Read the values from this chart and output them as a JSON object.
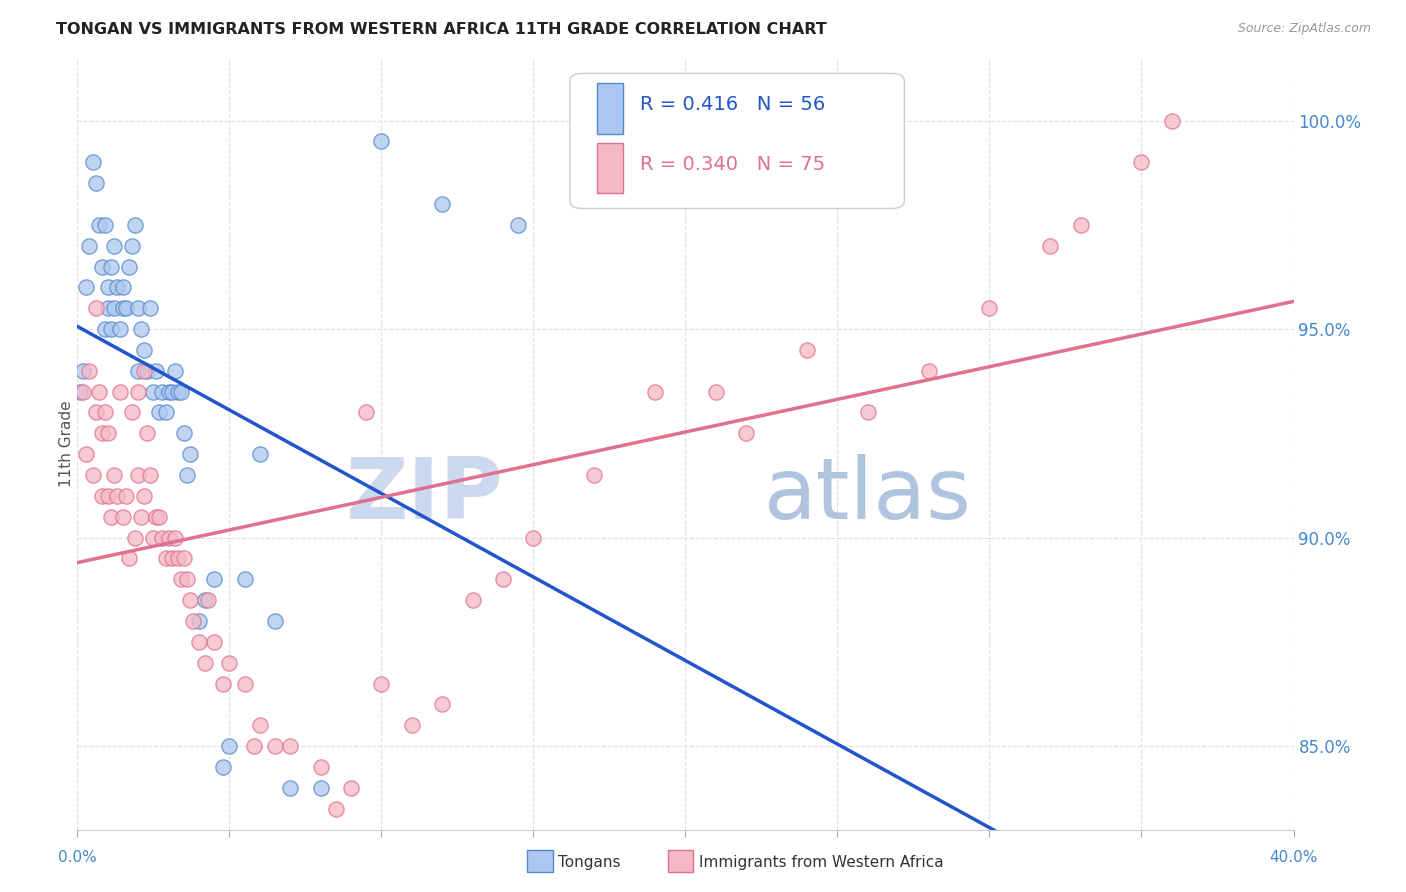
{
  "title": "TONGAN VS IMMIGRANTS FROM WESTERN AFRICA 11TH GRADE CORRELATION CHART",
  "source": "Source: ZipAtlas.com",
  "ylabel": "11th Grade",
  "xlim": [
    0.0,
    40.0
  ],
  "ylim": [
    83.0,
    101.5
  ],
  "yticks": [
    85.0,
    90.0,
    95.0,
    100.0
  ],
  "ytick_labels": [
    "85.0%",
    "90.0%",
    "95.0%",
    "100.0%"
  ],
  "xticks": [
    0.0,
    5.0,
    10.0,
    15.0,
    20.0,
    25.0,
    30.0,
    35.0,
    40.0
  ],
  "legend_r_blue": "R = 0.416",
  "legend_n_blue": "N = 56",
  "legend_r_pink": "R = 0.340",
  "legend_n_pink": "N = 75",
  "blue_scatter_color": "#adc8f0",
  "blue_edge_color": "#5588cc",
  "pink_scatter_color": "#f5b8c8",
  "pink_edge_color": "#e07090",
  "blue_line_color": "#2255cc",
  "pink_line_color": "#e07090",
  "watermark_zip_color": "#ccd8ee",
  "watermark_atlas_color": "#b0c4e0",
  "background_color": "#ffffff",
  "grid_color": "#e0e0e0",
  "tongans_x": [
    0.1,
    0.2,
    0.3,
    0.4,
    0.5,
    0.6,
    0.7,
    0.8,
    0.9,
    0.9,
    1.0,
    1.0,
    1.1,
    1.1,
    1.2,
    1.2,
    1.3,
    1.4,
    1.5,
    1.5,
    1.6,
    1.7,
    1.8,
    1.9,
    2.0,
    2.0,
    2.1,
    2.2,
    2.3,
    2.4,
    2.5,
    2.6,
    2.7,
    2.8,
    2.9,
    3.0,
    3.1,
    3.2,
    3.3,
    3.4,
    3.5,
    3.6,
    3.7,
    4.0,
    4.2,
    4.5,
    4.8,
    5.0,
    5.5,
    6.0,
    6.5,
    7.0,
    8.0,
    10.0,
    12.0,
    14.5
  ],
  "tongans_y": [
    93.5,
    94.0,
    96.0,
    97.0,
    99.0,
    98.5,
    97.5,
    96.5,
    95.0,
    97.5,
    95.5,
    96.0,
    95.0,
    96.5,
    95.5,
    97.0,
    96.0,
    95.0,
    96.0,
    95.5,
    95.5,
    96.5,
    97.0,
    97.5,
    94.0,
    95.5,
    95.0,
    94.5,
    94.0,
    95.5,
    93.5,
    94.0,
    93.0,
    93.5,
    93.0,
    93.5,
    93.5,
    94.0,
    93.5,
    93.5,
    92.5,
    91.5,
    92.0,
    88.0,
    88.5,
    89.0,
    84.5,
    85.0,
    89.0,
    92.0,
    88.0,
    84.0,
    84.0,
    99.5,
    98.0,
    97.5
  ],
  "western_africa_x": [
    0.2,
    0.3,
    0.4,
    0.5,
    0.6,
    0.7,
    0.8,
    0.8,
    0.9,
    1.0,
    1.0,
    1.1,
    1.2,
    1.3,
    1.4,
    1.5,
    1.6,
    1.7,
    1.8,
    1.9,
    2.0,
    2.0,
    2.1,
    2.2,
    2.3,
    2.4,
    2.5,
    2.6,
    2.7,
    2.8,
    2.9,
    3.0,
    3.1,
    3.2,
    3.3,
    3.4,
    3.5,
    3.6,
    3.7,
    3.8,
    4.0,
    4.2,
    4.5,
    4.8,
    5.0,
    5.5,
    6.0,
    6.5,
    7.0,
    8.0,
    8.5,
    9.0,
    10.0,
    11.0,
    12.0,
    13.0,
    14.0,
    15.0,
    17.0,
    19.0,
    21.0,
    22.0,
    24.0,
    26.0,
    28.0,
    30.0,
    32.0,
    33.0,
    35.0,
    36.0,
    9.5,
    5.8,
    4.3,
    2.2,
    0.6
  ],
  "western_africa_y": [
    93.5,
    92.0,
    94.0,
    91.5,
    93.0,
    93.5,
    92.5,
    91.0,
    93.0,
    92.5,
    91.0,
    90.5,
    91.5,
    91.0,
    93.5,
    90.5,
    91.0,
    89.5,
    93.0,
    90.0,
    91.5,
    93.5,
    90.5,
    91.0,
    92.5,
    91.5,
    90.0,
    90.5,
    90.5,
    90.0,
    89.5,
    90.0,
    89.5,
    90.0,
    89.5,
    89.0,
    89.5,
    89.0,
    88.5,
    88.0,
    87.5,
    87.0,
    87.5,
    86.5,
    87.0,
    86.5,
    85.5,
    85.0,
    85.0,
    84.5,
    83.5,
    84.0,
    86.5,
    85.5,
    86.0,
    88.5,
    89.0,
    90.0,
    91.5,
    93.5,
    93.5,
    92.5,
    94.5,
    93.0,
    94.0,
    95.5,
    97.0,
    97.5,
    99.0,
    100.0,
    93.0,
    85.0,
    88.5,
    94.0,
    95.5
  ]
}
